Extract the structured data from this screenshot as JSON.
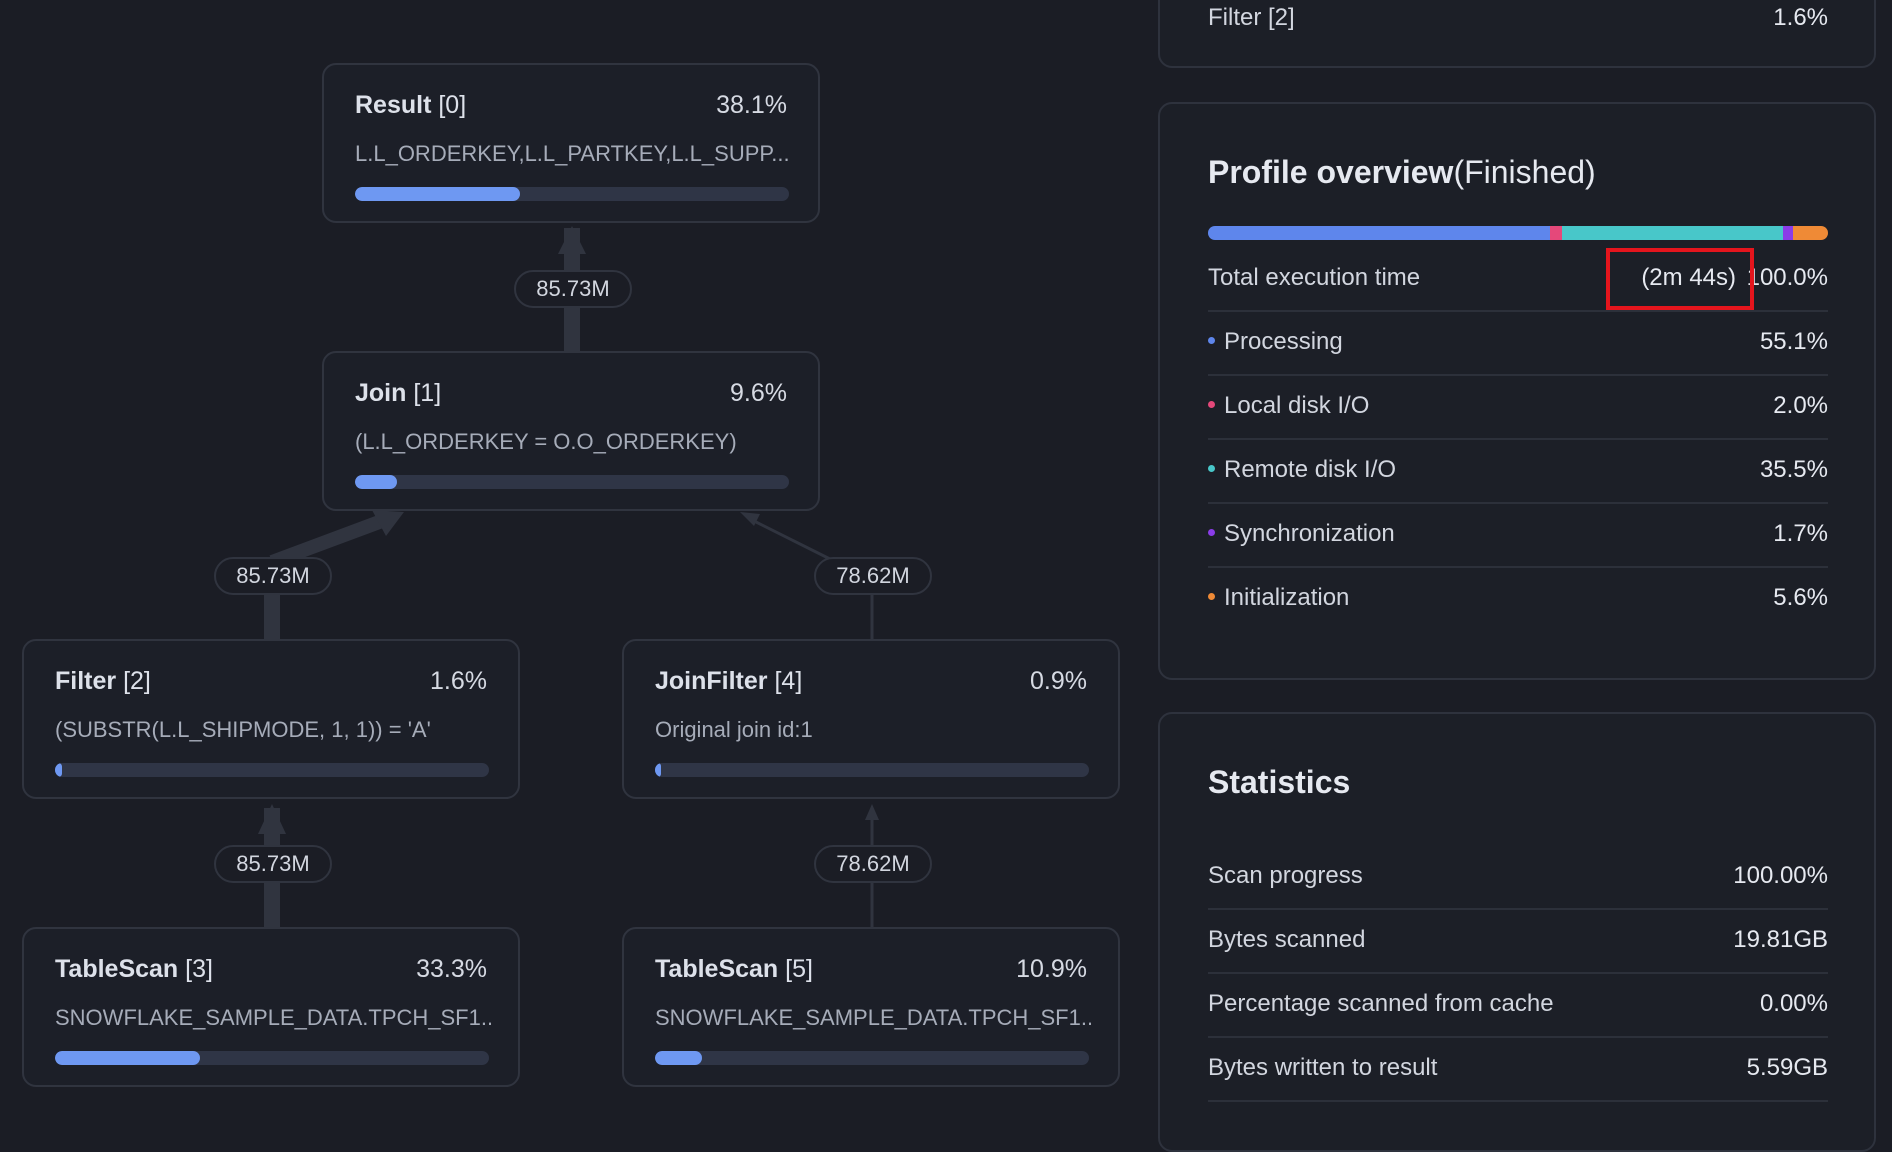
{
  "graph": {
    "nodes": [
      {
        "op": "Result",
        "id": "[0]",
        "pct": "38.1%",
        "desc": "L.L_ORDERKEY,L.L_PARTKEY,L.L_SUPP...",
        "progress": 0.381
      },
      {
        "op": "Join",
        "id": "[1]",
        "pct": "9.6%",
        "desc": "(L.L_ORDERKEY = O.O_ORDERKEY)",
        "progress": 0.096
      },
      {
        "op": "Filter",
        "id": "[2]",
        "pct": "1.6%",
        "desc": "(SUBSTR(L.L_SHIPMODE, 1, 1)) = 'A'",
        "progress": 0.016
      },
      {
        "op": "JoinFilter",
        "id": "[4]",
        "pct": "0.9%",
        "desc": "Original join id:1",
        "progress": 0.009
      },
      {
        "op": "TableScan",
        "id": "[3]",
        "pct": "33.3%",
        "desc": "SNOWFLAKE_SAMPLE_DATA.TPCH_SF1...",
        "progress": 0.333
      },
      {
        "op": "TableScan",
        "id": "[5]",
        "pct": "10.9%",
        "desc": "SNOWFLAKE_SAMPLE_DATA.TPCH_SF1...",
        "progress": 0.109
      }
    ],
    "edges": [
      {
        "rows": "85.73M"
      },
      {
        "rows": "85.73M"
      },
      {
        "rows": "78.62M"
      },
      {
        "rows": "85.73M"
      },
      {
        "rows": "78.62M"
      }
    ]
  },
  "top_panel": {
    "label": "Filter [2]",
    "value": "1.6%"
  },
  "profile_overview": {
    "title": "Profile overview",
    "status": "(Finished)",
    "total_label": "Total execution time",
    "total_duration": "(2m 44s)",
    "total_pct": "100.0%",
    "items": [
      {
        "label": "Processing",
        "pct": "55.1%",
        "color": "#5e86ec",
        "value": 55.1
      },
      {
        "label": "Local disk I/O",
        "pct": "2.0%",
        "color": "#e5487a",
        "value": 2.0
      },
      {
        "label": "Remote disk I/O",
        "pct": "35.5%",
        "color": "#48c7c9",
        "value": 35.5
      },
      {
        "label": "Synchronization",
        "pct": "1.7%",
        "color": "#8a3ce8",
        "value": 1.7
      },
      {
        "label": "Initialization",
        "pct": "5.6%",
        "color": "#ef8a36",
        "value": 5.6
      }
    ]
  },
  "statistics": {
    "title": "Statistics",
    "rows": [
      {
        "label": "Scan progress",
        "value": "100.00%"
      },
      {
        "label": "Bytes scanned",
        "value": "19.81GB"
      },
      {
        "label": "Percentage scanned from cache",
        "value": "0.00%"
      },
      {
        "label": "Bytes written to result",
        "value": "5.59GB"
      }
    ]
  }
}
